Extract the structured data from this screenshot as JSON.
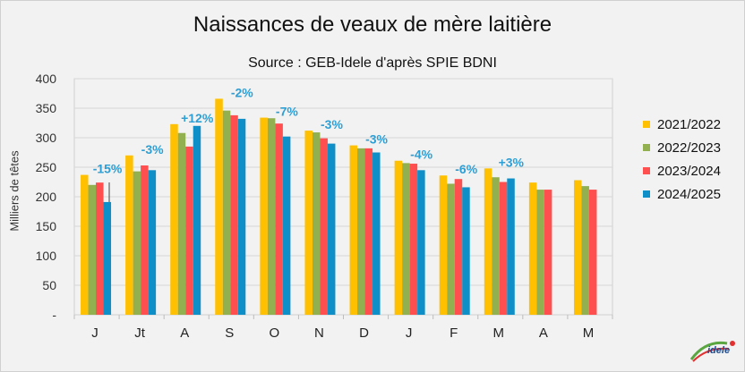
{
  "chart_data": {
    "type": "bar",
    "title": "Naissances de veaux de mère laitière",
    "subtitle": "Source : GEB-Idele d'après SPIE BDNI",
    "ylabel": "Milliers de têtes",
    "xlabel": "",
    "ylim": [
      0,
      400
    ],
    "yticks": [
      "-",
      "50",
      "100",
      "150",
      "200",
      "250",
      "300",
      "350",
      "400"
    ],
    "categories": [
      "J",
      "Jt",
      "A",
      "S",
      "O",
      "N",
      "D",
      "J",
      "F",
      "M",
      "A",
      "M"
    ],
    "series": [
      {
        "name": "2021/2022",
        "color": "#ffc000",
        "values": [
          237,
          270,
          323,
          366,
          334,
          312,
          287,
          261,
          236,
          248,
          224,
          228
        ]
      },
      {
        "name": "2022/2023",
        "color": "#92b050",
        "values": [
          220,
          243,
          308,
          346,
          333,
          309,
          282,
          257,
          222,
          233,
          212,
          218
        ]
      },
      {
        "name": "2023/2024",
        "color": "#ff4f4f",
        "values": [
          224,
          253,
          285,
          338,
          324,
          299,
          282,
          256,
          230,
          225,
          212,
          212
        ]
      },
      {
        "name": "2024/2025",
        "color": "#0f8fc8",
        "values": [
          191,
          245,
          320,
          332,
          302,
          290,
          275,
          245,
          216,
          231,
          null,
          null
        ]
      }
    ],
    "annotations": [
      "-15%",
      "-3%",
      "+12%",
      "-2%",
      "-7%",
      "-3%",
      "-3%",
      "-4%",
      "-6%",
      "+3%",
      null,
      null
    ],
    "annotation_color": "#2e9fd4",
    "grid": true,
    "legend_position": "right"
  },
  "logo": {
    "text": "idele",
    "description": "Institut de l'Élevage logo"
  }
}
